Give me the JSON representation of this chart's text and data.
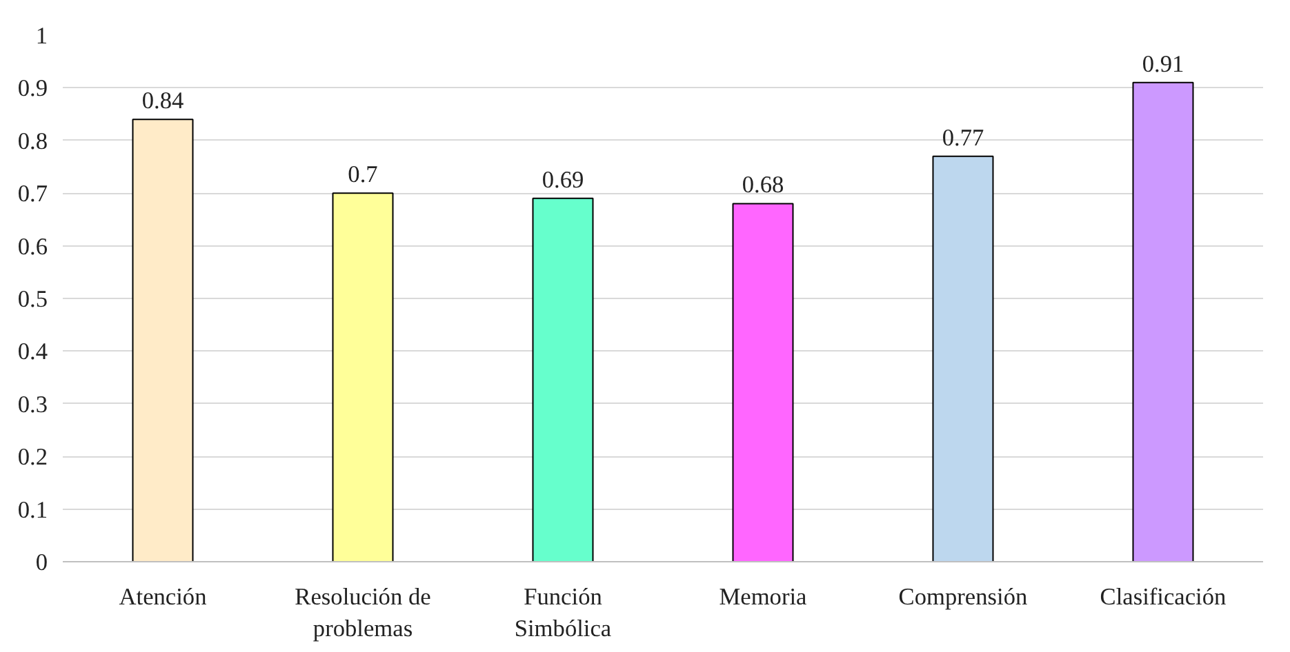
{
  "chart_data": {
    "type": "bar",
    "categories": [
      "Atención",
      "Resolución de problemas",
      "Función Simbólica",
      "Memoria",
      "Comprensión",
      "Clasificación"
    ],
    "values": [
      0.84,
      0.7,
      0.69,
      0.68,
      0.77,
      0.91
    ],
    "colors": [
      "#ffebc8",
      "#ffff99",
      "#66ffcc",
      "#ff66ff",
      "#bdd7ee",
      "#cc99ff"
    ],
    "ylim": [
      0,
      1
    ],
    "yticks": [
      0,
      0.1,
      0.2,
      0.3,
      0.4,
      0.5,
      0.6,
      0.7,
      0.8,
      0.9,
      1
    ],
    "grid": "y",
    "data_labels": true
  }
}
